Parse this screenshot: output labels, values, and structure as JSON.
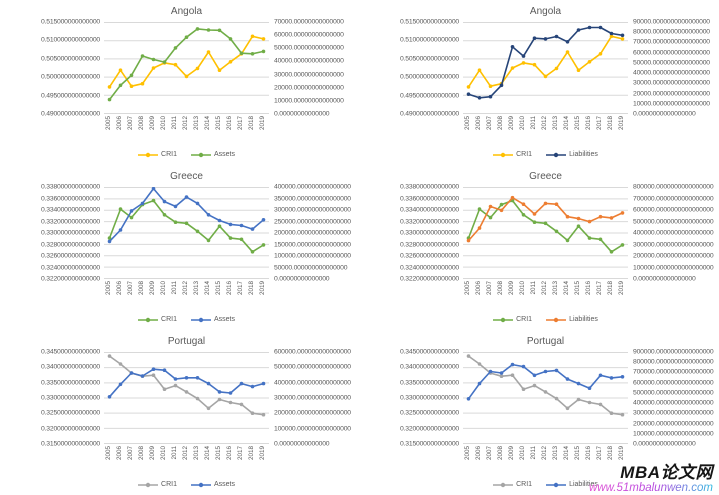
{
  "watermark": {
    "brand": "MBA论文网",
    "url": "www.51mbalunwen.com"
  },
  "palette": {
    "cri1_gold": "#FFC000",
    "assets_green": "#70AD47",
    "liabilities_navy": "#264478",
    "assets_blue": "#4472C4",
    "liabilities_orange": "#ED7D31",
    "cri1_gray": "#A5A5A5",
    "gridline": "#D9D9D9",
    "text_gray": "#595959"
  },
  "chart_data": [
    {
      "type": "line",
      "title": "Angola",
      "categories": [
        "2005",
        "2006",
        "2007",
        "2008",
        "2009",
        "2010",
        "2011",
        "2012",
        "2013",
        "2014",
        "2015",
        "2016",
        "2017",
        "2018",
        "2019"
      ],
      "left_axis": {
        "min": 0.49,
        "max": 0.515,
        "labels": [
          "0.515000000000000",
          "0.510000000000000",
          "0.505000000000000",
          "0.500000000000000",
          "0.495000000000000",
          "0.490000000000000"
        ]
      },
      "right_axis": {
        "min": 0,
        "max": 70000,
        "labels": [
          "70000.00000000000000",
          "60000.00000000000000",
          "50000.00000000000000",
          "40000.00000000000000",
          "30000.00000000000000",
          "20000.00000000000000",
          "10000.00000000000000",
          "0.00000000000000"
        ]
      },
      "series": [
        {
          "name": "CRI1",
          "color": "#FFC000",
          "axis": "left",
          "values": [
            0.4973,
            0.5019,
            0.4975,
            0.4982,
            0.5025,
            0.5039,
            0.5034,
            0.5002,
            0.5024,
            0.5069,
            0.5019,
            0.5042,
            0.5064,
            0.5112,
            0.5105
          ]
        },
        {
          "name": "Assets",
          "color": "#70AD47",
          "axis": "right",
          "values": [
            10700,
            21700,
            29400,
            44200,
            41500,
            39500,
            50500,
            58700,
            65100,
            64200,
            64000,
            57400,
            46400,
            45900,
            47800
          ]
        }
      ],
      "legend_position": "bottom",
      "grid": true
    },
    {
      "type": "line",
      "title": "Angola",
      "categories": [
        "2005",
        "2006",
        "2007",
        "2008",
        "2009",
        "2010",
        "2011",
        "2012",
        "2013",
        "2014",
        "2015",
        "2016",
        "2017",
        "2018",
        "2019"
      ],
      "left_axis": {
        "min": 0.49,
        "max": 0.515,
        "labels": [
          "0.515000000000000",
          "0.510000000000000",
          "0.505000000000000",
          "0.500000000000000",
          "0.495000000000000",
          "0.490000000000000"
        ]
      },
      "right_axis": {
        "min": 0,
        "max": 90000,
        "labels": [
          "90000.0000000000000000",
          "80000.0000000000000000",
          "70000.0000000000000000",
          "60000.0000000000000000",
          "50000.0000000000000000",
          "40000.0000000000000000",
          "30000.0000000000000000",
          "20000.0000000000000000",
          "10000.0000000000000000",
          "0.0000000000000000"
        ]
      },
      "series": [
        {
          "name": "CRI1",
          "color": "#FFC000",
          "axis": "left",
          "values": [
            0.4973,
            0.5019,
            0.4975,
            0.4982,
            0.5025,
            0.5039,
            0.5034,
            0.5002,
            0.5024,
            0.5069,
            0.5019,
            0.5042,
            0.5064,
            0.5112,
            0.5105
          ]
        },
        {
          "name": "Liabilities",
          "color": "#264478",
          "axis": "right",
          "values": [
            19100,
            15500,
            16600,
            27900,
            66000,
            56800,
            74500,
            73800,
            76200,
            70900,
            82600,
            85100,
            85100,
            79100,
            77300
          ]
        }
      ],
      "legend_position": "bottom",
      "grid": true
    },
    {
      "type": "line",
      "title": "Greece",
      "categories": [
        "2005",
        "2006",
        "2007",
        "2008",
        "2009",
        "2010",
        "2011",
        "2012",
        "2013",
        "2014",
        "2015",
        "2016",
        "2017",
        "2018",
        "2019"
      ],
      "left_axis": {
        "min": 0.322,
        "max": 0.338,
        "labels": [
          "0.338000000000000",
          "0.336000000000000",
          "0.334000000000000",
          "0.332000000000000",
          "0.330000000000000",
          "0.328000000000000",
          "0.326000000000000",
          "0.324000000000000",
          "0.322000000000000"
        ]
      },
      "right_axis": {
        "min": 0,
        "max": 400000,
        "labels": [
          "400000.000000000000000",
          "350000.000000000000000",
          "300000.000000000000000",
          "250000.000000000000000",
          "200000.000000000000000",
          "150000.000000000000000",
          "100000.000000000000000",
          "50000.000000000000000",
          "0.00000000000000"
        ]
      },
      "series": [
        {
          "name": "CRI1",
          "color": "#70AD47",
          "axis": "left",
          "values": [
            0.3291,
            0.3342,
            0.3327,
            0.335,
            0.3357,
            0.3332,
            0.3319,
            0.3317,
            0.3303,
            0.3287,
            0.3312,
            0.3291,
            0.3289,
            0.3267,
            0.3279
          ]
        },
        {
          "name": "Assets",
          "color": "#4472C4",
          "axis": "right",
          "values": [
            163000,
            213000,
            297000,
            330000,
            395000,
            338000,
            317000,
            358000,
            330000,
            280000,
            255000,
            238000,
            233000,
            217000,
            258000
          ]
        }
      ],
      "legend_position": "bottom",
      "grid": true
    },
    {
      "type": "line",
      "title": "Greece",
      "categories": [
        "2005",
        "2006",
        "2007",
        "2008",
        "2009",
        "2010",
        "2011",
        "2012",
        "2013",
        "2014",
        "2015",
        "2016",
        "2017",
        "2018",
        "2019"
      ],
      "left_axis": {
        "min": 0.322,
        "max": 0.338,
        "labels": [
          "0.338000000000000",
          "0.336000000000000",
          "0.334000000000000",
          "0.332000000000000",
          "0.330000000000000",
          "0.328000000000000",
          "0.326000000000000",
          "0.324000000000000",
          "0.322000000000000"
        ]
      },
      "right_axis": {
        "min": 0,
        "max": 800000,
        "labels": [
          "800000.0000000000000000",
          "700000.0000000000000000",
          "600000.0000000000000000",
          "500000.0000000000000000",
          "400000.0000000000000000",
          "300000.0000000000000000",
          "200000.0000000000000000",
          "100000.0000000000000000",
          "0.0000000000000000"
        ]
      },
      "series": [
        {
          "name": "CRI1",
          "color": "#70AD47",
          "axis": "left",
          "values": [
            0.3291,
            0.3342,
            0.3327,
            0.335,
            0.3357,
            0.3332,
            0.3319,
            0.3317,
            0.3303,
            0.3287,
            0.3312,
            0.3291,
            0.3289,
            0.3267,
            0.3279
          ]
        },
        {
          "name": "Liabilities",
          "color": "#ED7D31",
          "axis": "right",
          "values": [
            333000,
            443000,
            633000,
            600000,
            710000,
            653000,
            567000,
            660000,
            653000,
            543000,
            527000,
            500000,
            543000,
            533000,
            577000
          ]
        }
      ],
      "legend_position": "bottom",
      "grid": true
    },
    {
      "type": "line",
      "title": "Portugal",
      "categories": [
        "2005",
        "2006",
        "2007",
        "2008",
        "2009",
        "2010",
        "2011",
        "2012",
        "2013",
        "2014",
        "2015",
        "2016",
        "2017",
        "2018",
        "2019"
      ],
      "left_axis": {
        "min": 0.315,
        "max": 0.345,
        "labels": [
          "0.345000000000000",
          "0.340000000000000",
          "0.335000000000000",
          "0.330000000000000",
          "0.325000000000000",
          "0.320000000000000",
          "0.315000000000000"
        ]
      },
      "right_axis": {
        "min": 0,
        "max": 600000,
        "labels": [
          "600000.000000000000000",
          "500000.000000000000000",
          "400000.000000000000000",
          "300000.000000000000000",
          "200000.000000000000000",
          "100000.000000000000000",
          "0.00000000000000"
        ]
      },
      "series": [
        {
          "name": "CRI1",
          "color": "#A5A5A5",
          "axis": "left",
          "values": [
            0.3438,
            0.3412,
            0.3382,
            0.3372,
            0.3375,
            0.3329,
            0.3341,
            0.332,
            0.3298,
            0.3266,
            0.3295,
            0.3285,
            0.3279,
            0.325,
            0.3245
          ]
        },
        {
          "name": "Assets",
          "color": "#4472C4",
          "axis": "right",
          "values": [
            308000,
            390000,
            465000,
            445000,
            490000,
            483000,
            425000,
            433000,
            433000,
            395000,
            340000,
            333000,
            395000,
            375000,
            395000
          ]
        }
      ],
      "legend_position": "bottom",
      "grid": true
    },
    {
      "type": "line",
      "title": "Portugal",
      "categories": [
        "2005",
        "2006",
        "2007",
        "2008",
        "2009",
        "2010",
        "2011",
        "2012",
        "2013",
        "2014",
        "2015",
        "2016",
        "2017",
        "2018",
        "2019"
      ],
      "left_axis": {
        "min": 0.315,
        "max": 0.345,
        "labels": [
          "0.345000000000000",
          "0.340000000000000",
          "0.335000000000000",
          "0.330000000000000",
          "0.325000000000000",
          "0.320000000000000",
          "0.315000000000000"
        ]
      },
      "right_axis": {
        "min": 0,
        "max": 900000,
        "labels": [
          "900000.0000000000000000",
          "800000.0000000000000000",
          "700000.0000000000000000",
          "600000.0000000000000000",
          "500000.0000000000000000",
          "400000.0000000000000000",
          "300000.0000000000000000",
          "200000.0000000000000000",
          "100000.0000000000000000",
          "0.0000000000000000"
        ]
      },
      "series": [
        {
          "name": "CRI1",
          "color": "#A5A5A5",
          "axis": "left",
          "values": [
            0.3438,
            0.3412,
            0.3382,
            0.3372,
            0.3375,
            0.3329,
            0.3341,
            0.332,
            0.3298,
            0.3266,
            0.3295,
            0.3285,
            0.3279,
            0.325,
            0.3245
          ]
        },
        {
          "name": "Liabilities",
          "color": "#4472C4",
          "axis": "right",
          "values": [
            442000,
            592000,
            712000,
            697000,
            780000,
            761000,
            675000,
            712000,
            723000,
            637000,
            592000,
            547000,
            675000,
            649000,
            660000
          ]
        }
      ],
      "legend_position": "bottom",
      "grid": true
    }
  ]
}
